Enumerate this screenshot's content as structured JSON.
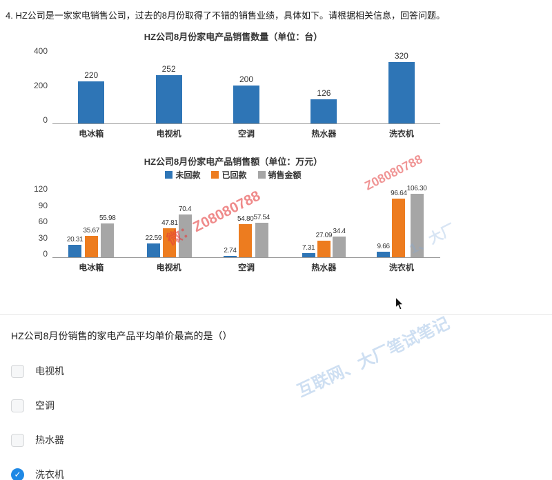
{
  "header": {
    "text": "4.  HZ公司是一家家电销售公司，过去的8月份取得了不错的销售业绩，具体如下。请根据相关信息，回答问题。"
  },
  "chart_data": [
    {
      "type": "bar",
      "title": "HZ公司8月份家电产品销售数量（单位：台）",
      "categories": [
        "电冰箱",
        "电视机",
        "空调",
        "热水器",
        "洗衣机"
      ],
      "values": [
        220,
        252,
        200,
        126,
        320
      ],
      "labels": [
        "220",
        "252",
        "200",
        "126",
        "320"
      ],
      "bar_color": "#2e75b6",
      "ylim": [
        0,
        400
      ],
      "yticks": [
        400,
        200,
        0
      ],
      "grid": false,
      "legend": false
    },
    {
      "type": "bar",
      "title": "HZ公司8月份家电产品销售额（单位：万元）",
      "categories": [
        "电冰箱",
        "电视机",
        "空调",
        "热水器",
        "洗衣机"
      ],
      "series": [
        {
          "name": "未回款",
          "color": "#2e75b6",
          "values": [
            20.31,
            22.59,
            2.74,
            7.31,
            9.66
          ],
          "labels": [
            "20.31",
            "22.59",
            "2.74",
            "7.31",
            "9.66"
          ]
        },
        {
          "name": "已回款",
          "color": "#ed7c1f",
          "values": [
            35.67,
            47.81,
            54.8,
            27.09,
            96.64
          ],
          "labels": [
            "35.67",
            "47.81",
            "54.80",
            "27.09",
            "96.64"
          ]
        },
        {
          "name": "销售金额",
          "color": "#a6a6a6",
          "values": [
            55.98,
            70.4,
            57.54,
            34.4,
            106.3
          ],
          "labels": [
            "55.98",
            "70.4",
            "57.54",
            "34.4",
            "106.30"
          ]
        }
      ],
      "ylim": [
        0,
        120
      ],
      "yticks": [
        120,
        90,
        60,
        30,
        0
      ],
      "grid": false,
      "legend_position": "top"
    }
  ],
  "question": {
    "text": "HZ公司8月份销售的家电产品平均单价最高的是（）",
    "options": [
      {
        "label": "电视机",
        "selected": false
      },
      {
        "label": "空调",
        "selected": false
      },
      {
        "label": "热水器",
        "selected": false
      },
      {
        "label": "洗衣机",
        "selected": true
      }
    ]
  },
  "icons": {
    "check": "✓"
  },
  "watermarks": {
    "red_main": "微：Z08080788",
    "red_secondary": "Z08080788",
    "blue_main": "互联网、大厂笔试笔记",
    "blue_secondary": "1、大厂"
  }
}
